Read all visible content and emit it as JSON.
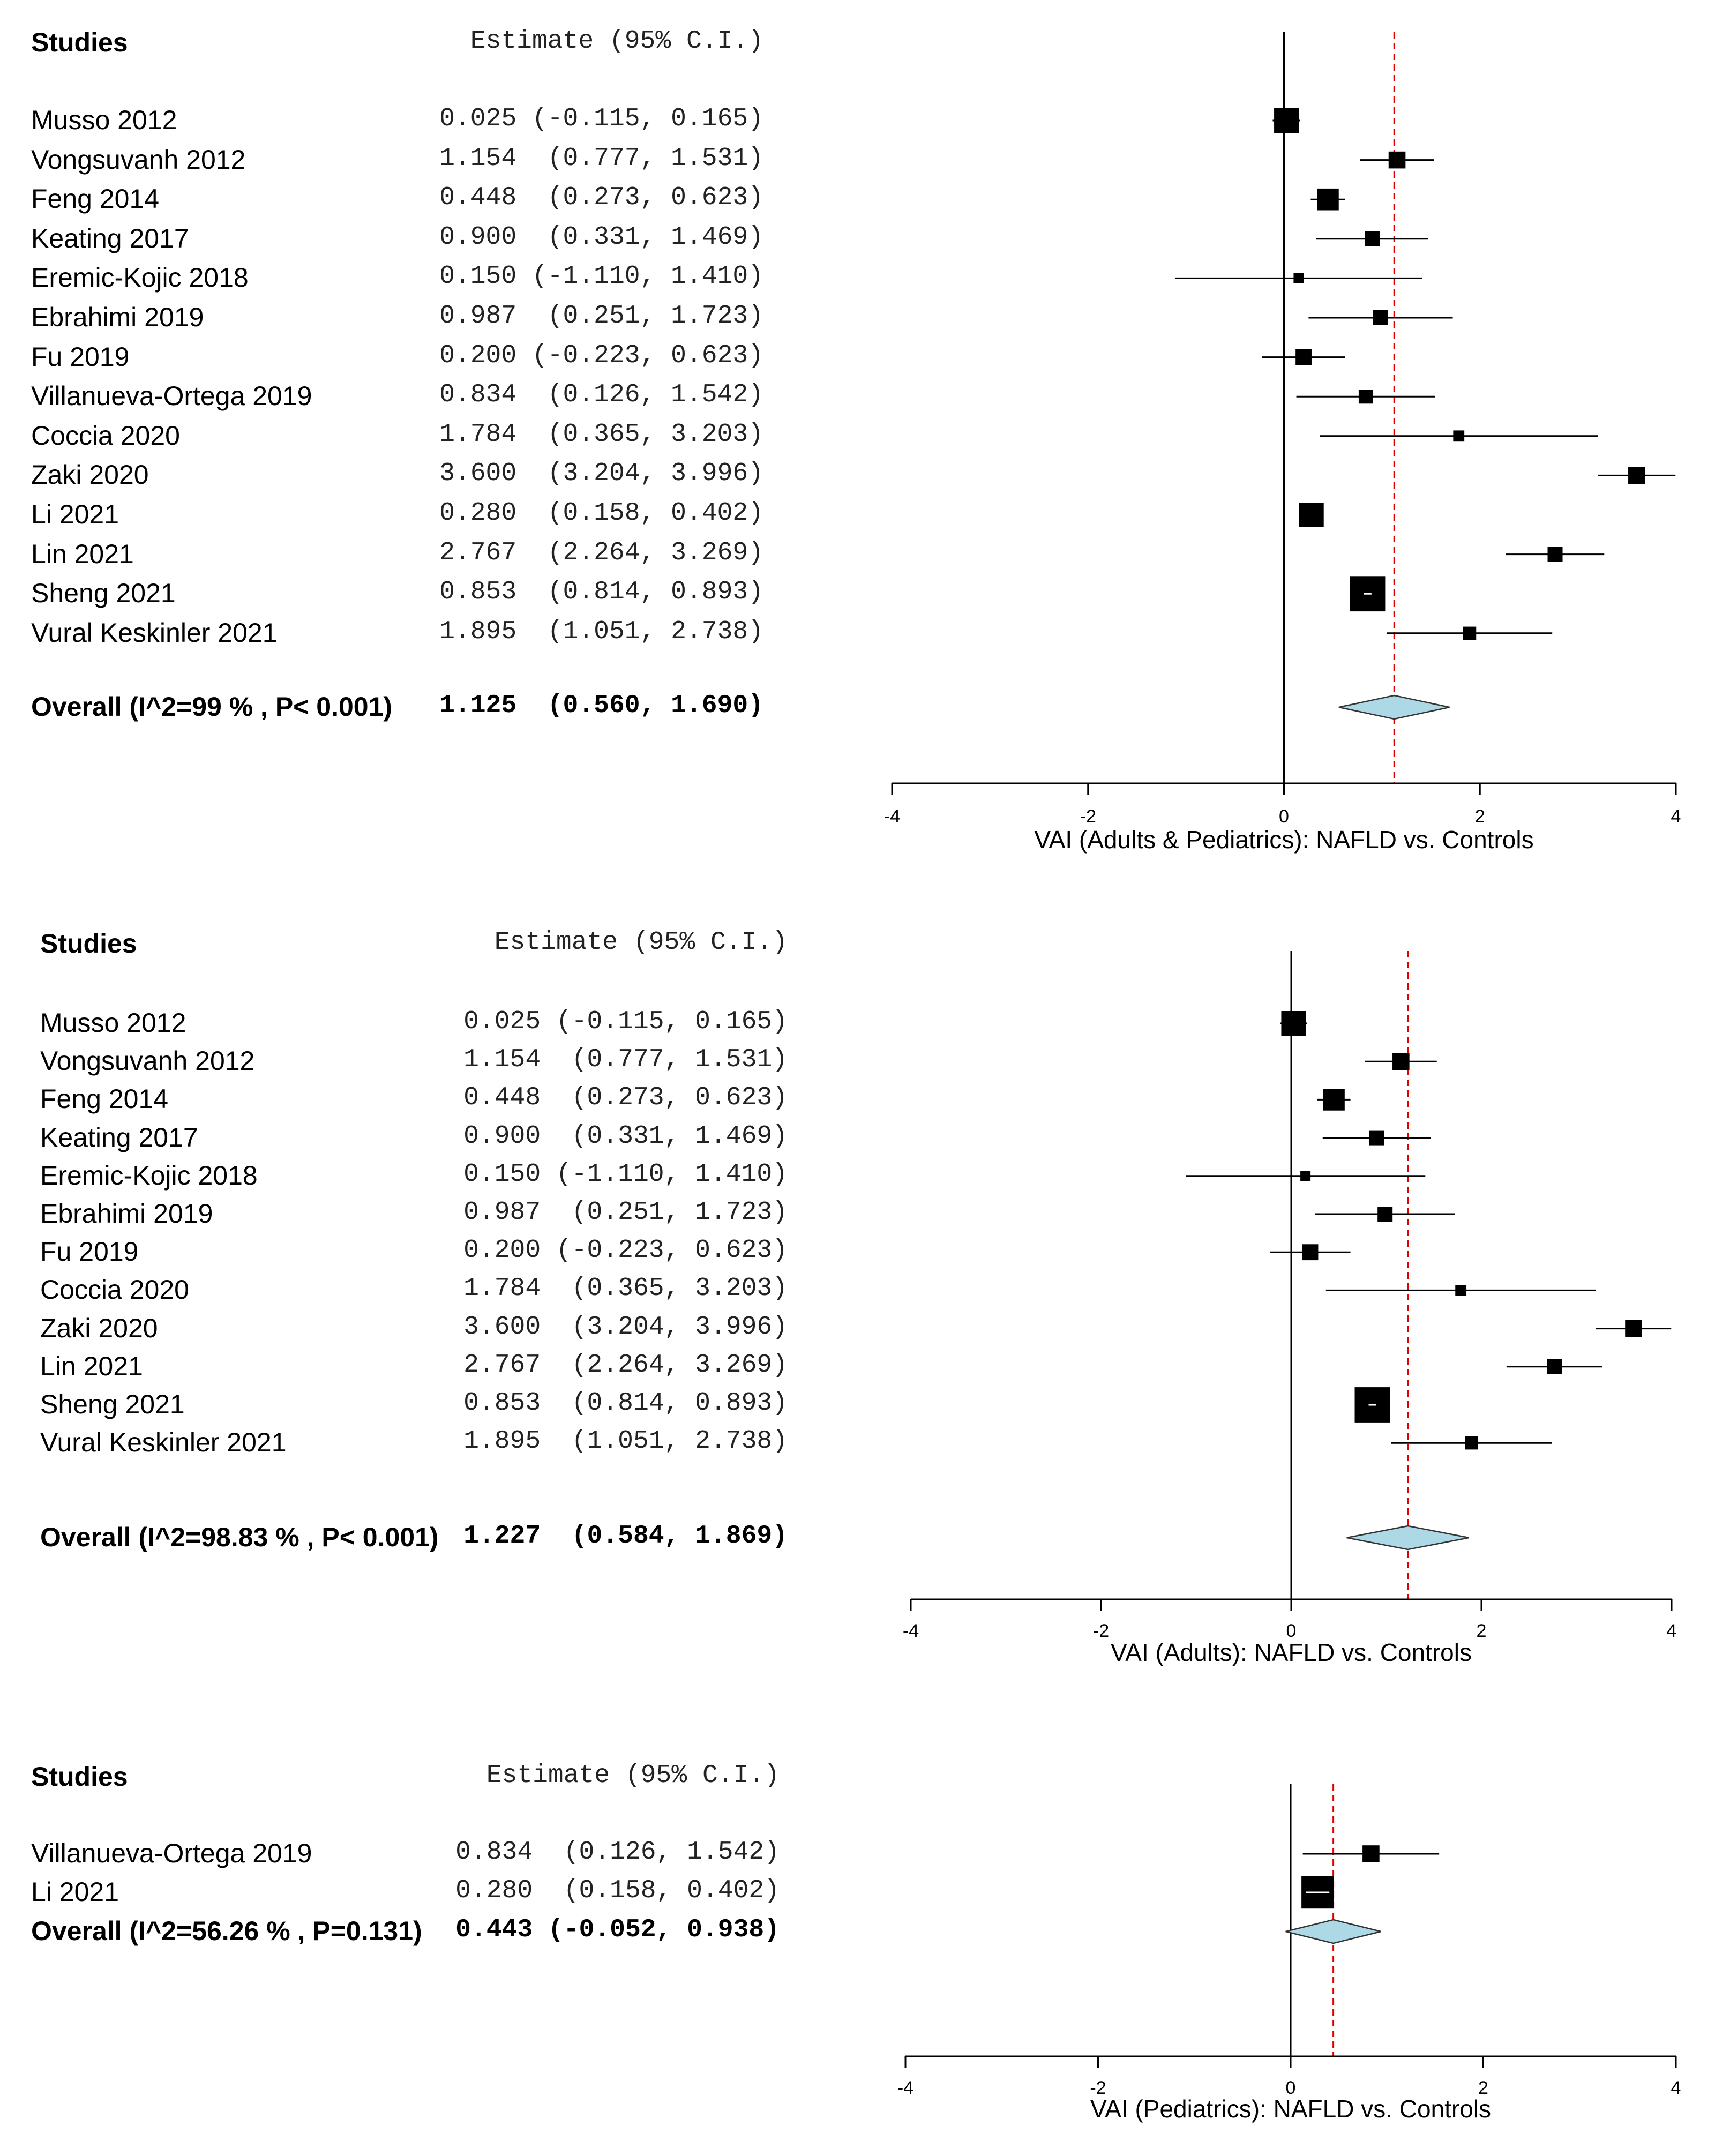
{
  "chart_data": [
    {
      "type": "forest",
      "header": {
        "studies": "Studies",
        "estimate": "Estimate (95% C.I.)"
      },
      "xlabel": "VAI (Adults & Pediatrics): NAFLD vs. Controls",
      "xlim": [
        -4,
        4
      ],
      "ticks": [
        "-4",
        "-2",
        "0",
        "2",
        "4"
      ],
      "reference_line": 1.125,
      "studies": [
        {
          "name": "Musso 2012",
          "est": 0.025,
          "lo": -0.115,
          "hi": 0.165,
          "text": "0.025 (-0.115, 0.165)",
          "weight": 2
        },
        {
          "name": "Vongsuvanh 2012",
          "est": 1.154,
          "lo": 0.777,
          "hi": 1.531,
          "text": "1.154  (0.777, 1.531)",
          "weight": 1.2
        },
        {
          "name": "Feng 2014",
          "est": 0.448,
          "lo": 0.273,
          "hi": 0.623,
          "text": "0.448  (0.273, 0.623)",
          "weight": 1.7
        },
        {
          "name": "Keating 2017",
          "est": 0.9,
          "lo": 0.331,
          "hi": 1.469,
          "text": "0.900  (0.331, 1.469)",
          "weight": 1
        },
        {
          "name": "Eremic-Kojic 2018",
          "est": 0.15,
          "lo": -1.11,
          "hi": 1.41,
          "text": "0.150 (-1.110, 1.410)",
          "weight": 0.5
        },
        {
          "name": "Ebrahimi 2019",
          "est": 0.987,
          "lo": 0.251,
          "hi": 1.723,
          "text": "0.987  (0.251, 1.723)",
          "weight": 1
        },
        {
          "name": "Fu 2019",
          "est": 0.2,
          "lo": -0.223,
          "hi": 0.623,
          "text": "0.200 (-0.223, 0.623)",
          "weight": 1.1
        },
        {
          "name": "Villanueva-Ortega 2019",
          "est": 0.834,
          "lo": 0.126,
          "hi": 1.542,
          "text": "0.834  (0.126, 1.542)",
          "weight": 0.9
        },
        {
          "name": "Coccia 2020",
          "est": 1.784,
          "lo": 0.365,
          "hi": 3.203,
          "text": "1.784  (0.365, 3.203)",
          "weight": 0.6
        },
        {
          "name": "Zaki 2020",
          "est": 3.6,
          "lo": 3.204,
          "hi": 3.996,
          "text": "3.600  (3.204, 3.996)",
          "weight": 1.2
        },
        {
          "name": "Li 2021",
          "est": 0.28,
          "lo": 0.158,
          "hi": 0.402,
          "text": "0.280  (0.158, 0.402)",
          "weight": 2
        },
        {
          "name": "Lin 2021",
          "est": 2.767,
          "lo": 2.264,
          "hi": 3.269,
          "text": "2.767  (2.264, 3.269)",
          "weight": 1
        },
        {
          "name": "Sheng 2021",
          "est": 0.853,
          "lo": 0.814,
          "hi": 0.893,
          "text": "0.853  (0.814, 0.893)",
          "weight": 3.1
        },
        {
          "name": "Vural Keskinler 2021",
          "est": 1.895,
          "lo": 1.051,
          "hi": 2.738,
          "text": "1.895  (1.051, 2.738)",
          "weight": 0.8
        }
      ],
      "overall": {
        "label": "Overall (I^2=99 % , P< 0.001)",
        "est": 1.125,
        "lo": 0.56,
        "hi": 1.69,
        "text": "1.125  (0.560, 1.690)"
      }
    },
    {
      "type": "forest",
      "header": {
        "studies": "Studies",
        "estimate": "Estimate (95% C.I.)"
      },
      "xlabel": "VAI (Adults): NAFLD vs. Controls",
      "xlim": [
        -4,
        4
      ],
      "ticks": [
        "-4",
        "-2",
        "0",
        "2",
        "4"
      ],
      "reference_line": 1.227,
      "studies": [
        {
          "name": "Musso 2012",
          "est": 0.025,
          "lo": -0.115,
          "hi": 0.165,
          "text": "0.025 (-0.115, 0.165)",
          "weight": 2
        },
        {
          "name": "Vongsuvanh 2012",
          "est": 1.154,
          "lo": 0.777,
          "hi": 1.531,
          "text": "1.154  (0.777, 1.531)",
          "weight": 1.2
        },
        {
          "name": "Feng 2014",
          "est": 0.448,
          "lo": 0.273,
          "hi": 0.623,
          "text": "0.448  (0.273, 0.623)",
          "weight": 1.7
        },
        {
          "name": "Keating 2017",
          "est": 0.9,
          "lo": 0.331,
          "hi": 1.469,
          "text": "0.900  (0.331, 1.469)",
          "weight": 1
        },
        {
          "name": "Eremic-Kojic 2018",
          "est": 0.15,
          "lo": -1.11,
          "hi": 1.41,
          "text": "0.150 (-1.110, 1.410)",
          "weight": 0.5
        },
        {
          "name": "Ebrahimi 2019",
          "est": 0.987,
          "lo": 0.251,
          "hi": 1.723,
          "text": "0.987  (0.251, 1.723)",
          "weight": 1
        },
        {
          "name": "Fu 2019",
          "est": 0.2,
          "lo": -0.223,
          "hi": 0.623,
          "text": "0.200 (-0.223, 0.623)",
          "weight": 1.1
        },
        {
          "name": "Coccia 2020",
          "est": 1.784,
          "lo": 0.365,
          "hi": 3.203,
          "text": "1.784  (0.365, 3.203)",
          "weight": 0.6
        },
        {
          "name": "Zaki 2020",
          "est": 3.6,
          "lo": 3.204,
          "hi": 3.996,
          "text": "3.600  (3.204, 3.996)",
          "weight": 1.2
        },
        {
          "name": "Lin 2021",
          "est": 2.767,
          "lo": 2.264,
          "hi": 3.269,
          "text": "2.767  (2.264, 3.269)",
          "weight": 1
        },
        {
          "name": "Sheng 2021",
          "est": 0.853,
          "lo": 0.814,
          "hi": 0.893,
          "text": "0.853  (0.814, 0.893)",
          "weight": 3.1
        },
        {
          "name": "Vural Keskinler 2021",
          "est": 1.895,
          "lo": 1.051,
          "hi": 2.738,
          "text": "1.895  (1.051, 2.738)",
          "weight": 0.8
        }
      ],
      "overall": {
        "label": "Overall (I^2=98.83 % , P< 0.001)",
        "est": 1.227,
        "lo": 0.584,
        "hi": 1.869,
        "text": "1.227  (0.584, 1.869)"
      }
    },
    {
      "type": "forest",
      "header": {
        "studies": "Studies",
        "estimate": "Estimate (95% C.I.)"
      },
      "xlabel": "VAI (Pediatrics): NAFLD vs. Controls",
      "xlim": [
        -4,
        4
      ],
      "ticks": [
        "-4",
        "-2",
        "0",
        "2",
        "4"
      ],
      "reference_line": 0.443,
      "studies": [
        {
          "name": "Villanueva-Ortega 2019",
          "est": 0.834,
          "lo": 0.126,
          "hi": 1.542,
          "text": "0.834  (0.126, 1.542)",
          "weight": 1.2
        },
        {
          "name": "Li 2021",
          "est": 0.28,
          "lo": 0.158,
          "hi": 0.402,
          "text": "0.280  (0.158, 0.402)",
          "weight": 2.8
        }
      ],
      "overall": {
        "label": "Overall (I^2=56.26 % , P=0.131)",
        "est": 0.443,
        "lo": -0.052,
        "hi": 0.938,
        "text": "0.443 (-0.052, 0.938)"
      }
    }
  ],
  "colors": {
    "diamond": "#ADD8E6",
    "refline": "#E00000",
    "ink": "#000000"
  }
}
